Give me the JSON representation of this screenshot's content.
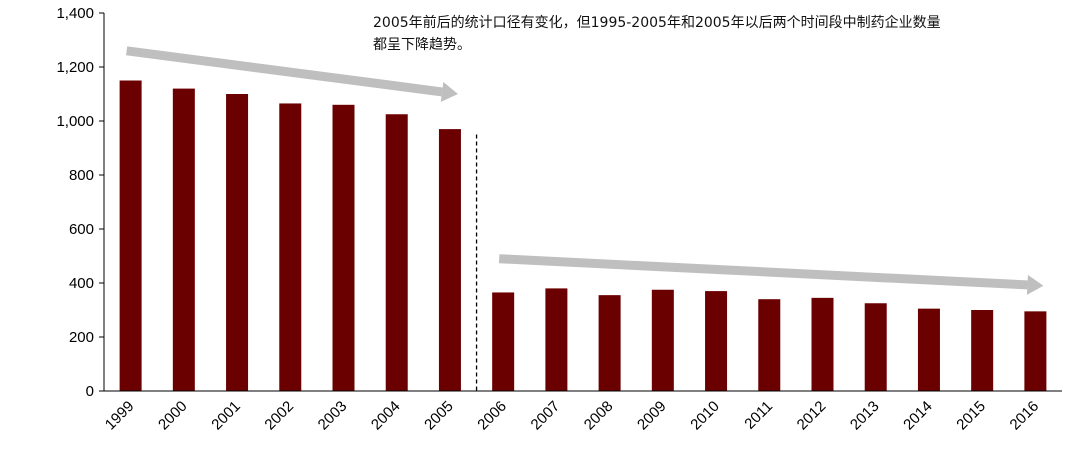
{
  "chart_data": {
    "type": "bar",
    "categories": [
      "1999",
      "2000",
      "2001",
      "2002",
      "2003",
      "2004",
      "2005",
      "2006",
      "2007",
      "2008",
      "2009",
      "2010",
      "2011",
      "2012",
      "2013",
      "2014",
      "2015",
      "2016"
    ],
    "values": [
      1150,
      1120,
      1100,
      1065,
      1060,
      1025,
      970,
      365,
      380,
      355,
      375,
      370,
      340,
      345,
      325,
      305,
      300,
      295
    ],
    "ylim": [
      0,
      1400
    ],
    "yticks": [
      0,
      200,
      400,
      600,
      800,
      1000,
      1200,
      1400
    ],
    "ytick_labels": [
      "0",
      "200",
      "400",
      "600",
      "800",
      "1,000",
      "1,200",
      "1,400"
    ],
    "bar_color": "#6b0000",
    "trend_arrow_color": "#bfbfbf",
    "annotation": "2005年前后的统计口径有变化，但1995-2005年和2005年以后两个时间段中制药企业数量都呈下降趋势。",
    "trend_arrows": [
      {
        "from": {
          "x": "1999",
          "y": 1260
        },
        "to": {
          "x": "2005",
          "y": 1100
        }
      },
      {
        "from": {
          "x": "2006",
          "y": 490
        },
        "to": {
          "x": "2016",
          "y": 390
        }
      }
    ],
    "divider_between": [
      "2005",
      "2006"
    ],
    "grid": false,
    "legend": "none"
  }
}
